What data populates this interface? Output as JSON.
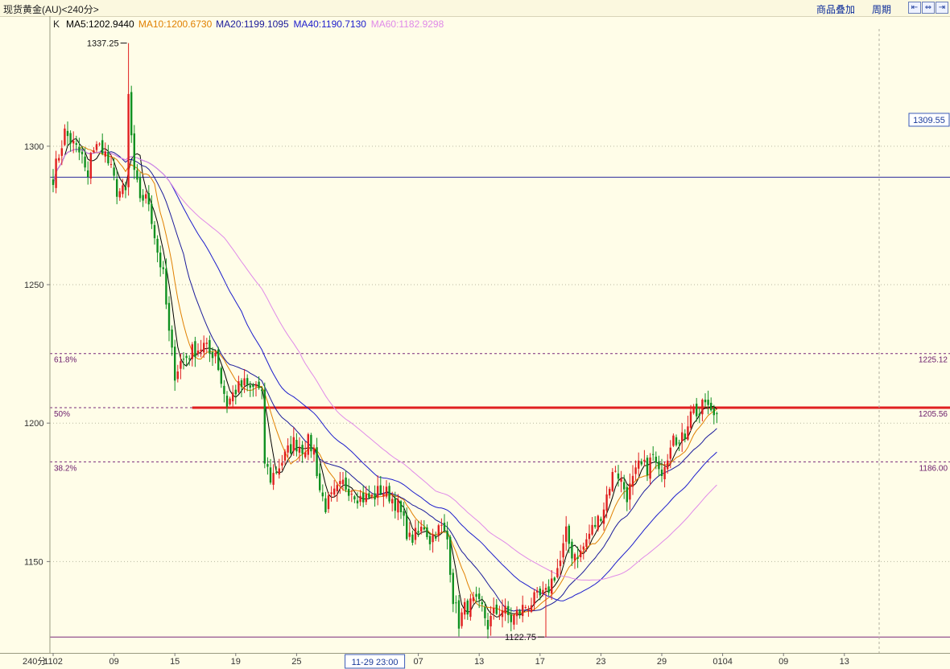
{
  "window": {
    "title": "现货黄金(AU)<240分>",
    "overlay_label": "商品叠加",
    "period_label": "周期",
    "nav_left": "⇤",
    "nav_mid": "⇔",
    "nav_right": "⇥"
  },
  "chart_data": {
    "type": "candlestick",
    "indicator_prefix": "K",
    "legend": [
      {
        "label": "MA5:1202.9440",
        "color": "#000000"
      },
      {
        "label": "MA10:1200.6730",
        "color": "#e08000"
      },
      {
        "label": "MA20:1199.1095",
        "color": "#1a1a9a"
      },
      {
        "label": "MA40:1190.7130",
        "color": "#1c1ccc"
      },
      {
        "label": "MA60:1182.9298",
        "color": "#e08ae8"
      }
    ],
    "ylim": [
      1117,
      1347
    ],
    "y_ticks": [
      1150,
      1200,
      1250,
      1300
    ],
    "x_period_label": "240分",
    "x_ticks": [
      {
        "label": "1102",
        "i": 0
      },
      {
        "label": "09",
        "i": 21
      },
      {
        "label": "15",
        "i": 42
      },
      {
        "label": "19",
        "i": 63
      },
      {
        "label": "25",
        "i": 84
      },
      {
        "label": "07",
        "i": 126
      },
      {
        "label": "13",
        "i": 147
      },
      {
        "label": "17",
        "i": 168
      },
      {
        "label": "23",
        "i": 189
      },
      {
        "label": "29",
        "i": 210
      },
      {
        "label": "0104",
        "i": 231
      },
      {
        "label": "09",
        "i": 252
      },
      {
        "label": "13",
        "i": 273
      }
    ],
    "crosshair_label": "11-29 23:00",
    "crosshair_index": 111,
    "cursor_index": 285,
    "high_mark": {
      "text": "1337.25",
      "value": 1337.25,
      "i": 26
    },
    "low_mark": {
      "text": "1122.75",
      "value": 1122.75,
      "i": 170
    },
    "reference_lines": [
      {
        "value": 1288.8,
        "color": "#2a2a9a",
        "style": "solid"
      },
      {
        "value": 1225.12,
        "color": "#7a2a7a",
        "style": "dashed",
        "left_label": "61.8%",
        "right_label": "1225.12"
      },
      {
        "value": 1205.56,
        "color": "#7a2a7a",
        "style": "dashed",
        "left_label": "50%",
        "right_label": "1205.56"
      },
      {
        "value": 1186.0,
        "color": "#7a2a7a",
        "style": "dashed",
        "left_label": "38.2%",
        "right_label": "1186.00"
      },
      {
        "value": 1122.75,
        "color": "#7a2a7a",
        "style": "solid"
      }
    ],
    "resistance_line": {
      "value": 1205.56,
      "from_i": 48,
      "color": "#e02020"
    },
    "price_tag": {
      "text": "1309.55",
      "value": 1309.55
    },
    "up_color": "#e02020",
    "down_color": "#109020",
    "anchors": [
      [
        0,
        1289
      ],
      [
        4,
        1305
      ],
      [
        10,
        1296
      ],
      [
        12,
        1287
      ],
      [
        13,
        1299
      ],
      [
        17,
        1300
      ],
      [
        20,
        1291
      ],
      [
        22,
        1284
      ],
      [
        25,
        1283
      ],
      [
        26,
        1318
      ],
      [
        28,
        1289
      ],
      [
        30,
        1282
      ],
      [
        33,
        1280
      ],
      [
        36,
        1262
      ],
      [
        38,
        1253
      ],
      [
        40,
        1232
      ],
      [
        42,
        1218
      ],
      [
        44,
        1222
      ],
      [
        48,
        1226
      ],
      [
        52,
        1228
      ],
      [
        54,
        1225
      ],
      [
        56,
        1226
      ],
      [
        58,
        1215
      ],
      [
        60,
        1207
      ],
      [
        63,
        1212
      ],
      [
        66,
        1214
      ],
      [
        68,
        1212
      ],
      [
        70,
        1214
      ],
      [
        72,
        1209
      ],
      [
        73,
        1186
      ],
      [
        75,
        1180
      ],
      [
        77,
        1183
      ],
      [
        80,
        1188
      ],
      [
        83,
        1193
      ],
      [
        86,
        1191
      ],
      [
        88,
        1193
      ],
      [
        90,
        1190
      ],
      [
        92,
        1176
      ],
      [
        94,
        1170
      ],
      [
        97,
        1174
      ],
      [
        100,
        1178
      ],
      [
        103,
        1176
      ],
      [
        106,
        1173
      ],
      [
        110,
        1173
      ],
      [
        113,
        1176
      ],
      [
        116,
        1174
      ],
      [
        119,
        1170
      ],
      [
        121,
        1164
      ],
      [
        123,
        1158
      ],
      [
        126,
        1160
      ],
      [
        128,
        1163
      ],
      [
        130,
        1158
      ],
      [
        132,
        1161
      ],
      [
        134,
        1162
      ],
      [
        136,
        1158
      ],
      [
        137,
        1148
      ],
      [
        138,
        1137
      ],
      [
        140,
        1128
      ],
      [
        142,
        1133
      ],
      [
        145,
        1135
      ],
      [
        148,
        1133
      ],
      [
        150,
        1127
      ],
      [
        152,
        1131
      ],
      [
        155,
        1133
      ],
      [
        158,
        1129
      ],
      [
        160,
        1131
      ],
      [
        163,
        1134
      ],
      [
        166,
        1136
      ],
      [
        170,
        1138
      ],
      [
        172,
        1143
      ],
      [
        175,
        1150
      ],
      [
        177,
        1160
      ],
      [
        179,
        1153
      ],
      [
        182,
        1153
      ],
      [
        185,
        1160
      ],
      [
        188,
        1165
      ],
      [
        190,
        1170
      ],
      [
        192,
        1178
      ],
      [
        194,
        1184
      ],
      [
        196,
        1179
      ],
      [
        198,
        1174
      ],
      [
        200,
        1179
      ],
      [
        202,
        1184
      ],
      [
        205,
        1184
      ],
      [
        207,
        1188
      ],
      [
        209,
        1181
      ],
      [
        212,
        1189
      ],
      [
        214,
        1198
      ],
      [
        216,
        1192
      ],
      [
        218,
        1196
      ],
      [
        220,
        1206
      ],
      [
        223,
        1203
      ],
      [
        225,
        1208
      ],
      [
        227,
        1203
      ],
      [
        229,
        1204
      ]
    ]
  }
}
